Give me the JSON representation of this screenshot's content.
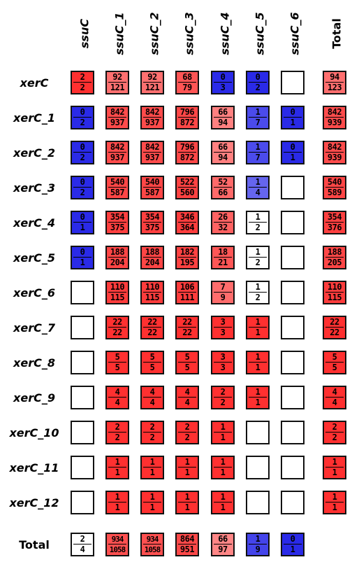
{
  "columns": [
    "ssuC",
    "ssuC_1",
    "ssuC_2",
    "ssuC_3",
    "ssuC_4",
    "ssuC_5",
    "ssuC_6",
    "Total"
  ],
  "rows": [
    {
      "label": "xerC",
      "cells": [
        [
          "2",
          "2"
        ],
        [
          "92",
          "121"
        ],
        [
          "92",
          "121"
        ],
        [
          "68",
          "79"
        ],
        [
          "0",
          "3"
        ],
        [
          "0",
          "2"
        ],
        null,
        [
          "94",
          "123"
        ]
      ]
    },
    {
      "label": "xerC_1",
      "cells": [
        [
          "0",
          "2"
        ],
        [
          "842",
          "937"
        ],
        [
          "842",
          "937"
        ],
        [
          "796",
          "872"
        ],
        [
          "66",
          "94"
        ],
        [
          "1",
          "7"
        ],
        [
          "0",
          "1"
        ],
        [
          "842",
          "939"
        ]
      ]
    },
    {
      "label": "xerC_2",
      "cells": [
        [
          "0",
          "2"
        ],
        [
          "842",
          "937"
        ],
        [
          "842",
          "937"
        ],
        [
          "796",
          "872"
        ],
        [
          "66",
          "94"
        ],
        [
          "1",
          "7"
        ],
        [
          "0",
          "1"
        ],
        [
          "842",
          "939"
        ]
      ]
    },
    {
      "label": "xerC_3",
      "cells": [
        [
          "0",
          "2"
        ],
        [
          "540",
          "587"
        ],
        [
          "540",
          "587"
        ],
        [
          "522",
          "560"
        ],
        [
          "52",
          "66"
        ],
        [
          "1",
          "4"
        ],
        null,
        [
          "540",
          "589"
        ]
      ]
    },
    {
      "label": "xerC_4",
      "cells": [
        [
          "0",
          "1"
        ],
        [
          "354",
          "375"
        ],
        [
          "354",
          "375"
        ],
        [
          "346",
          "364"
        ],
        [
          "26",
          "32"
        ],
        [
          "1",
          "2"
        ],
        null,
        [
          "354",
          "376"
        ]
      ]
    },
    {
      "label": "xerC_5",
      "cells": [
        [
          "0",
          "1"
        ],
        [
          "188",
          "204"
        ],
        [
          "188",
          "204"
        ],
        [
          "182",
          "195"
        ],
        [
          "18",
          "21"
        ],
        [
          "1",
          "2"
        ],
        null,
        [
          "188",
          "205"
        ]
      ]
    },
    {
      "label": "xerC_6",
      "cells": [
        null,
        [
          "110",
          "115"
        ],
        [
          "110",
          "115"
        ],
        [
          "106",
          "111"
        ],
        [
          "7",
          "9"
        ],
        [
          "1",
          "2"
        ],
        null,
        [
          "110",
          "115"
        ]
      ]
    },
    {
      "label": "xerC_7",
      "cells": [
        null,
        [
          "22",
          "22"
        ],
        [
          "22",
          "22"
        ],
        [
          "22",
          "22"
        ],
        [
          "3",
          "3"
        ],
        [
          "1",
          "1"
        ],
        null,
        [
          "22",
          "22"
        ]
      ]
    },
    {
      "label": "xerC_8",
      "cells": [
        null,
        [
          "5",
          "5"
        ],
        [
          "5",
          "5"
        ],
        [
          "5",
          "5"
        ],
        [
          "3",
          "3"
        ],
        [
          "1",
          "1"
        ],
        null,
        [
          "5",
          "5"
        ]
      ]
    },
    {
      "label": "xerC_9",
      "cells": [
        null,
        [
          "4",
          "4"
        ],
        [
          "4",
          "4"
        ],
        [
          "4",
          "4"
        ],
        [
          "2",
          "2"
        ],
        [
          "1",
          "1"
        ],
        null,
        [
          "4",
          "4"
        ]
      ]
    },
    {
      "label": "xerC_10",
      "cells": [
        null,
        [
          "2",
          "2"
        ],
        [
          "2",
          "2"
        ],
        [
          "2",
          "2"
        ],
        [
          "1",
          "1"
        ],
        null,
        null,
        [
          "2",
          "2"
        ]
      ]
    },
    {
      "label": "xerC_11",
      "cells": [
        null,
        [
          "1",
          "1"
        ],
        [
          "1",
          "1"
        ],
        [
          "1",
          "1"
        ],
        [
          "1",
          "1"
        ],
        null,
        null,
        [
          "1",
          "1"
        ]
      ]
    },
    {
      "label": "xerC_12",
      "cells": [
        null,
        [
          "1",
          "1"
        ],
        [
          "1",
          "1"
        ],
        [
          "1",
          "1"
        ],
        [
          "1",
          "1"
        ],
        null,
        null,
        [
          "1",
          "1"
        ]
      ]
    },
    {
      "label": "Total",
      "cells": [
        [
          "2",
          "4"
        ],
        [
          "934",
          "1058"
        ],
        [
          "934",
          "1058"
        ],
        [
          "864",
          "951"
        ],
        [
          "66",
          "97"
        ],
        [
          "1",
          "9"
        ],
        [
          "0",
          "1"
        ],
        null
      ]
    }
  ],
  "colors": {
    "high": "#ff3030",
    "low": "#2a2ae8",
    "neutral": "#ffffff",
    "border": "#111111"
  }
}
